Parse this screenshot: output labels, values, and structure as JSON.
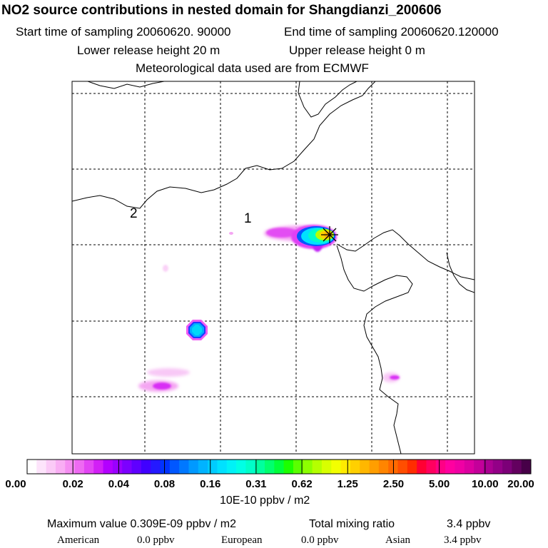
{
  "header": {
    "title": "NO2 source contributions in nested domain for Shangdianzi_200606",
    "start_time": "Start time of sampling 20060620. 90000",
    "end_time": "End time of sampling 20060620.120000",
    "lower_height": "Lower release height   20 m",
    "upper_height": "Upper release height    0 m",
    "met_data": "Meteorological data used are from ECMWF"
  },
  "map": {
    "contour_labels": [
      "1",
      "2"
    ],
    "receptor_marker": "star"
  },
  "colorbar": {
    "labels": [
      "0.00",
      "0.02",
      "0.04",
      "0.08",
      "0.16",
      "0.31",
      "0.62",
      "1.25",
      "2.50",
      "5.00",
      "10.00",
      "20.00"
    ],
    "colors": [
      "#ffffff",
      "#fde4fb",
      "#fbcaf7",
      "#f9aef4",
      "#f58ef2",
      "#ee6af2",
      "#e245f4",
      "#d21ff6",
      "#b300ff",
      "#9a00ff",
      "#7c00ff",
      "#5f00ff",
      "#4000ff",
      "#2419ff",
      "#0033ff",
      "#0057ff",
      "#0078ff",
      "#0099ff",
      "#00b3ff",
      "#00ccff",
      "#00e1ff",
      "#00f2f7",
      "#00ffe5",
      "#00ffc8",
      "#00ff9e",
      "#00ff6e",
      "#00ff3a",
      "#1cff00",
      "#5aff00",
      "#8cff00",
      "#b5ff00",
      "#d8ff00",
      "#f3ff00",
      "#ffeb00",
      "#ffd000",
      "#ffb700",
      "#ff9e00",
      "#ff8500",
      "#ff6a00",
      "#ff4e00",
      "#ff2d00",
      "#ff0033",
      "#ff005f",
      "#ff0085",
      "#ff00a0",
      "#f000a4",
      "#dc00a0",
      "#c4009a",
      "#ab0092",
      "#930087",
      "#7c0078",
      "#63005f",
      "#470048"
    ],
    "units": "10E-10 ppbv / m2"
  },
  "summary": {
    "max_value": "Maximum value  0.309E-09 ppbv / m2",
    "total_label": "Total mixing ratio",
    "total_value": "3.4 ppbv",
    "regions": [
      {
        "name": "American",
        "value": "0.0 ppbv"
      },
      {
        "name": "European",
        "value": "0.0 ppbv"
      },
      {
        "name": "Asian",
        "value": "3.4 ppbv"
      }
    ]
  }
}
